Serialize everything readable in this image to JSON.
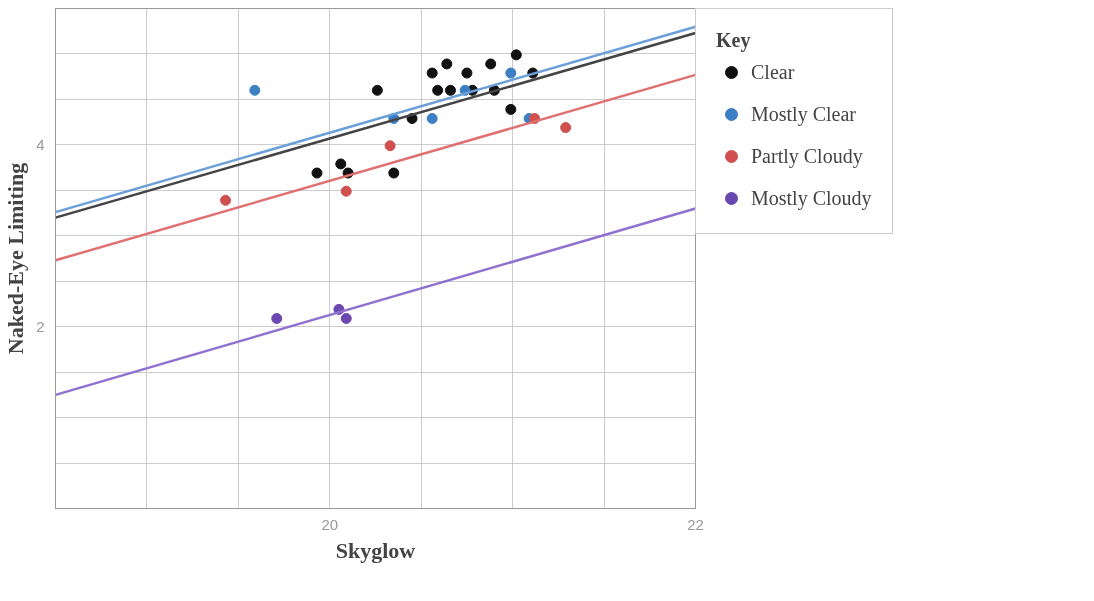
{
  "chart_data": {
    "type": "scatter",
    "xlabel": "Skyglow",
    "ylabel": "Naked-Eye Limiting",
    "legend_title": "Key",
    "legend": "right",
    "grid": true,
    "marker": "circle",
    "xlim": [
      18.5,
      22
    ],
    "ylim": [
      0,
      5.5
    ],
    "xticks": [
      {
        "value": 18.5,
        "label": null
      },
      {
        "value": 19,
        "label": null
      },
      {
        "value": 19.5,
        "label": null
      },
      20,
      {
        "value": 20.5,
        "label": null
      },
      {
        "value": 21,
        "label": null
      },
      {
        "value": 21.5,
        "label": null
      },
      22
    ],
    "yticks": [
      {
        "value": 0,
        "label": null
      },
      {
        "value": 0.5,
        "label": null
      },
      {
        "value": 1,
        "label": null
      },
      {
        "value": 1.5,
        "label": null
      },
      2,
      {
        "value": 2.5,
        "label": null
      },
      {
        "value": 3,
        "label": null
      },
      {
        "value": 3.5,
        "label": null
      },
      4,
      {
        "value": 4.5,
        "label": null
      },
      {
        "value": 5,
        "label": null
      },
      {
        "value": 5.5,
        "label": null
      }
    ],
    "series": [
      {
        "name": "Clear",
        "color": "#111111",
        "x": [
          19.93,
          20.06,
          20.1,
          20.26,
          20.35,
          20.45,
          20.56,
          20.59,
          20.64,
          20.66,
          20.75,
          20.78,
          20.88,
          20.9,
          20.99,
          21.02,
          21.11
        ],
        "values": [
          3.69,
          3.79,
          3.69,
          4.6,
          3.69,
          4.29,
          4.79,
          4.6,
          4.89,
          4.6,
          4.79,
          4.6,
          4.89,
          4.6,
          4.39,
          4.99,
          4.79
        ]
      },
      {
        "name": "Mostly Clear",
        "color": "#3d7fc4",
        "x": [
          19.59,
          20.35,
          20.56,
          20.74,
          20.99,
          21.09
        ],
        "values": [
          4.6,
          4.29,
          4.29,
          4.6,
          4.79,
          4.29
        ]
      },
      {
        "name": "Partly Cloudy",
        "color": "#d05050",
        "x": [
          19.43,
          20.09,
          20.33,
          21.12,
          21.29
        ],
        "values": [
          3.39,
          3.49,
          3.99,
          4.29,
          4.19
        ]
      },
      {
        "name": "Mostly Cloudy",
        "color": "#6a48b0",
        "x": [
          19.71,
          20.05,
          20.09
        ],
        "values": [
          2.09,
          2.19,
          2.09
        ]
      },
      {
        "type": "line",
        "marker": "none",
        "color": "#444444",
        "x": [
          18.5,
          22
        ],
        "values": [
          3.2,
          5.23
        ]
      },
      {
        "type": "line",
        "marker": "none",
        "color": "#6a9fd8",
        "x": [
          18.5,
          22
        ],
        "values": [
          3.26,
          5.3
        ]
      },
      {
        "type": "line",
        "marker": "none",
        "color": "#e07070",
        "x": [
          18.5,
          22
        ],
        "values": [
          2.73,
          4.77
        ]
      },
      {
        "type": "line",
        "marker": "none",
        "color": "#9070d0",
        "x": [
          18.5,
          22
        ],
        "values": [
          1.25,
          3.3
        ]
      }
    ]
  }
}
